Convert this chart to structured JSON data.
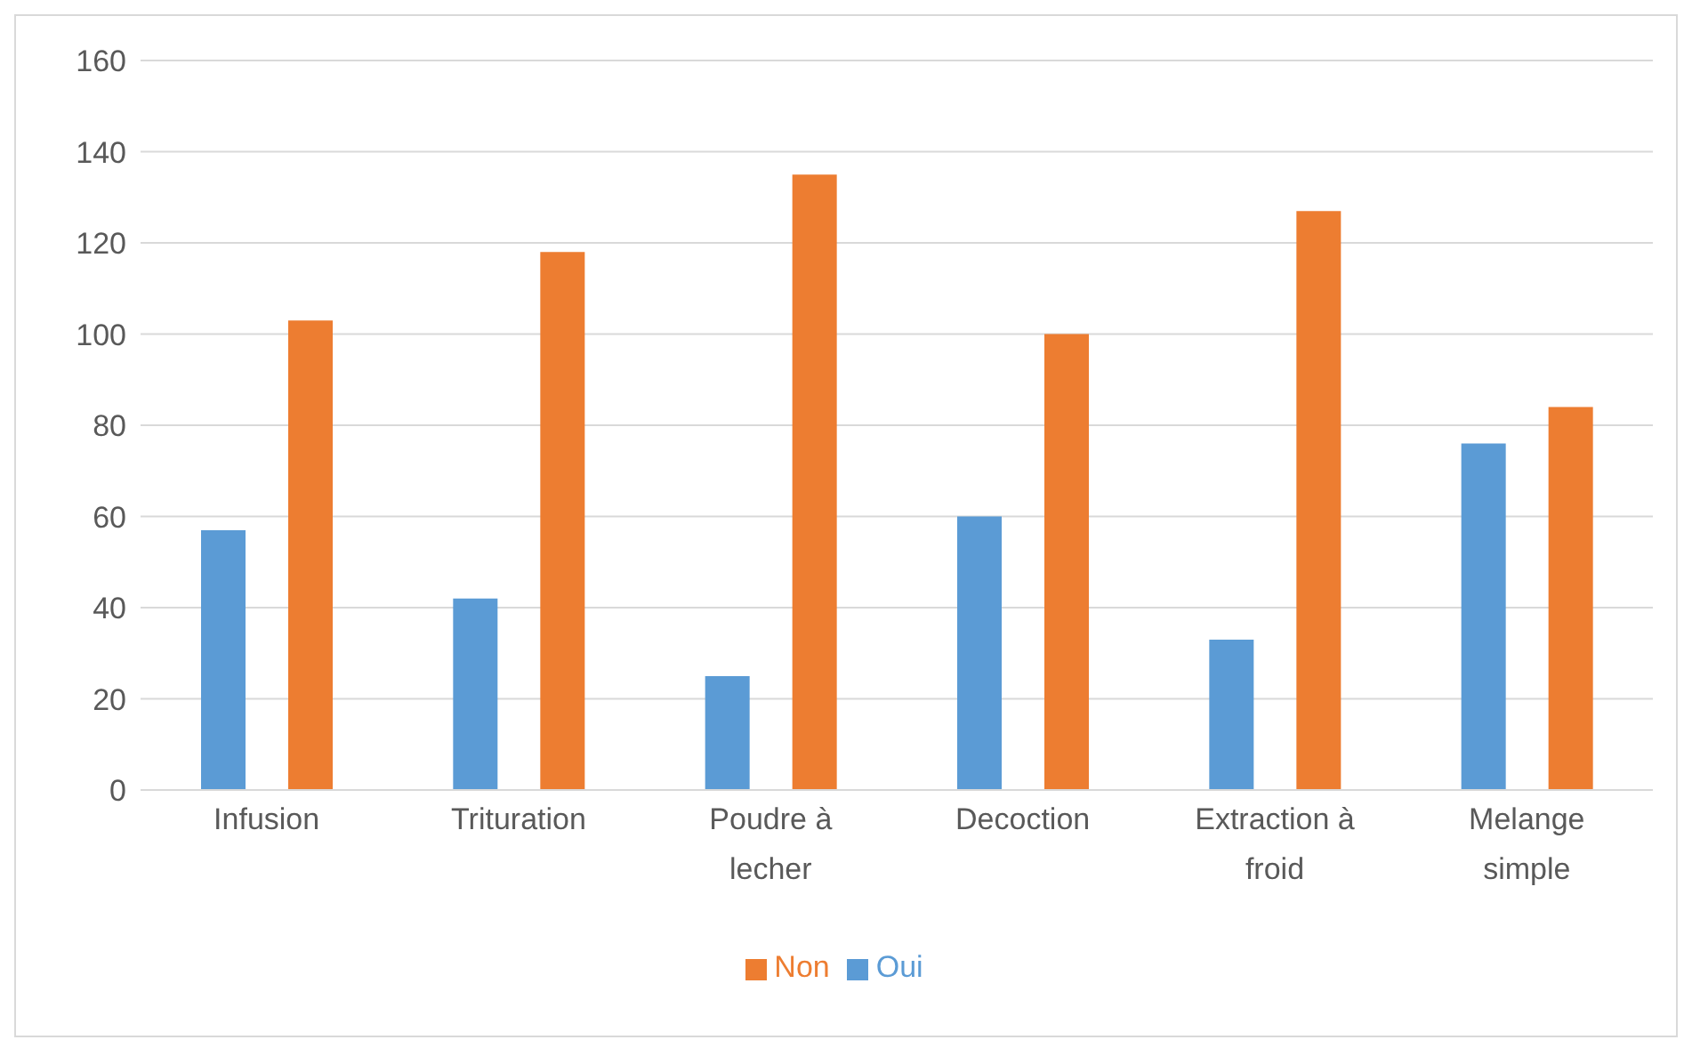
{
  "chart_data": {
    "type": "bar",
    "categories": [
      "Infusion",
      "Trituration",
      "Poudre à lecher",
      "Decoction",
      "Extraction à froid",
      "Melange simple"
    ],
    "series": [
      {
        "name": "Oui",
        "color": "#5b9bd5",
        "values": [
          57,
          42,
          25,
          60,
          33,
          76
        ]
      },
      {
        "name": "Non",
        "color": "#ed7d31",
        "values": [
          103,
          118,
          135,
          100,
          127,
          84
        ]
      }
    ],
    "ylim": [
      0,
      160
    ],
    "yticks": [
      0,
      20,
      40,
      60,
      80,
      100,
      120,
      140,
      160
    ],
    "grid": "y",
    "legend": "bottom"
  }
}
